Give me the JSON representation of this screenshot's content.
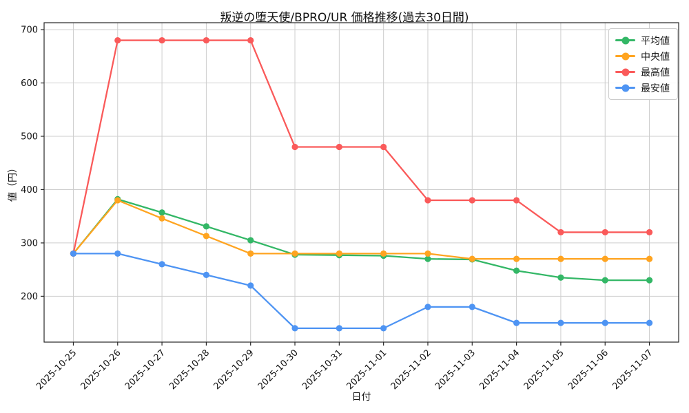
{
  "chart_data": {
    "type": "line",
    "title": "叛逆の堕天使/BPRO/UR 価格推移(過去30日間)",
    "xlabel": "日付",
    "ylabel": "値（円）",
    "grid": true,
    "legend_position": "top-right",
    "ylim": [
      114,
      713
    ],
    "yticks": [
      200,
      300,
      400,
      500,
      600,
      700
    ],
    "x": [
      "2025-10-25",
      "2025-10-26",
      "2025-10-27",
      "2025-10-28",
      "2025-10-29",
      "2025-10-30",
      "2025-10-31",
      "2025-11-01",
      "2025-11-02",
      "2025-11-03",
      "2025-11-04",
      "2025-11-05",
      "2025-11-06",
      "2025-11-07"
    ],
    "series": [
      {
        "key": "average",
        "name": "平均値",
        "color": "#33b766",
        "values": [
          280,
          382,
          357,
          331,
          305,
          278,
          277,
          276,
          270,
          269,
          248,
          235,
          230,
          230
        ]
      },
      {
        "key": "median",
        "name": "中央値",
        "color": "#ffa420",
        "values": [
          280,
          380,
          346,
          313,
          280,
          280,
          280,
          280,
          280,
          270,
          270,
          270,
          270,
          270
        ]
      },
      {
        "key": "max",
        "name": "最高値",
        "color": "#fa5a5a",
        "values": [
          280,
          680,
          680,
          680,
          680,
          480,
          480,
          480,
          380,
          380,
          380,
          320,
          320,
          320
        ]
      },
      {
        "key": "min",
        "name": "最安値",
        "color": "#4e94f3",
        "values": [
          280,
          280,
          260,
          240,
          220,
          140,
          140,
          140,
          180,
          180,
          150,
          150,
          150,
          150
        ]
      }
    ]
  }
}
